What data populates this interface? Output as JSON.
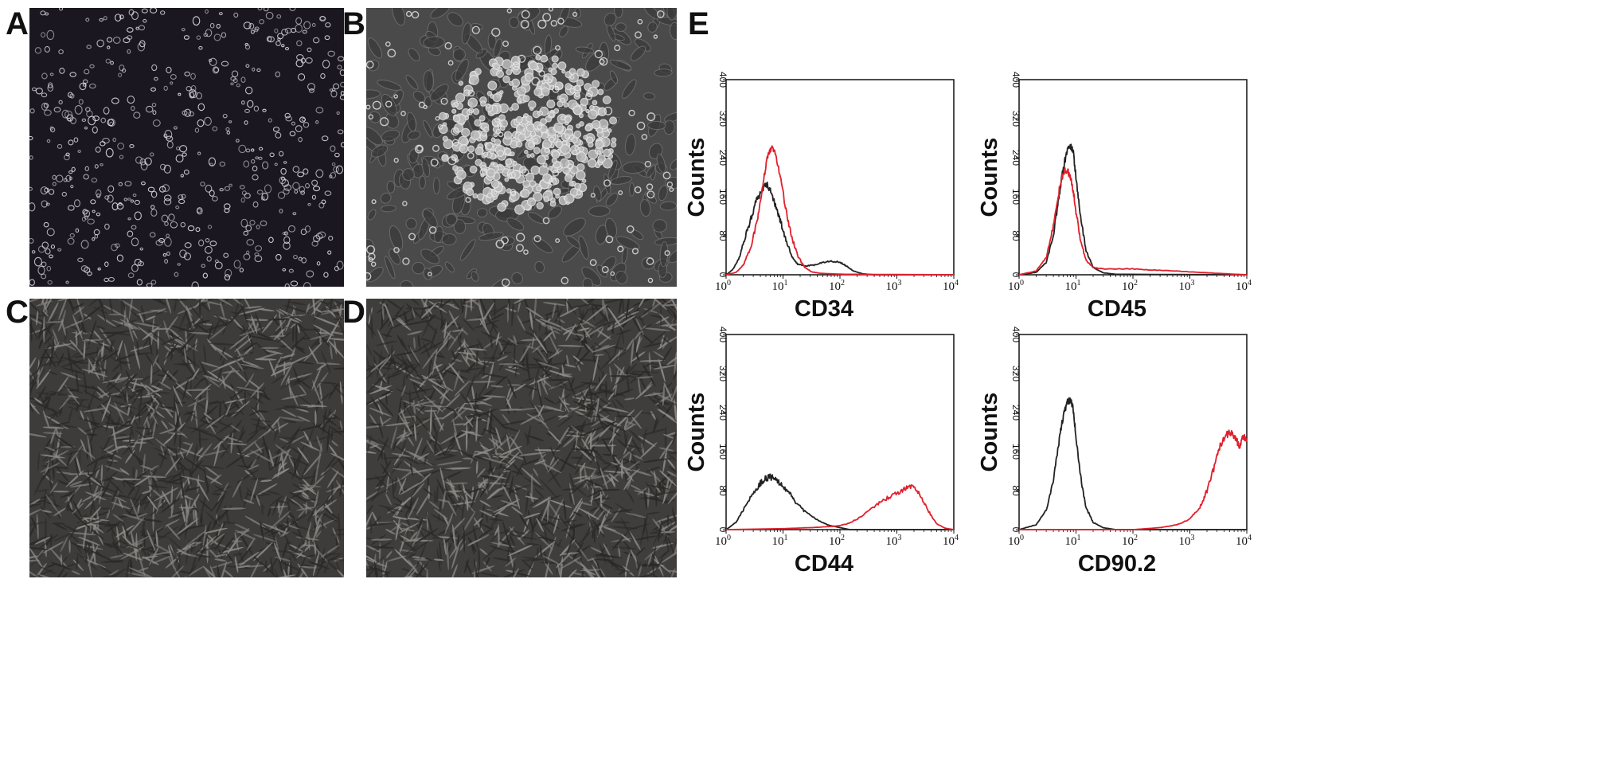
{
  "figure": {
    "panel_labels": {
      "a": "A",
      "b": "B",
      "c": "C",
      "d": "D",
      "e": "E"
    },
    "micrographs": [
      {
        "panel": "A",
        "description_style": "sparse-round-cells",
        "background": "#1a1720",
        "cell_color": "#d8d8dc"
      },
      {
        "panel": "B",
        "description_style": "colony",
        "background": "#4a4a4a",
        "cell_color": "#e6e6e6"
      },
      {
        "panel": "C",
        "description_style": "confluent-spindle",
        "background": "#3e3c3a",
        "cell_color": "#8c8a86"
      },
      {
        "panel": "D",
        "description_style": "confluent-spindle",
        "background": "#403e3c",
        "cell_color": "#8e8c88"
      }
    ]
  },
  "colors": {
    "control": "#222222",
    "marker": "#e0202c"
  },
  "chart_data": [
    {
      "type": "line",
      "marker": "CD34",
      "xlabel": "CD34",
      "ylabel": "Counts",
      "xscale": "log",
      "xlim": [
        1,
        10000
      ],
      "ylim": [
        0,
        400
      ],
      "yticks": [
        "0",
        "80",
        "160",
        "240",
        "320",
        "400"
      ],
      "xticks": [
        {
          "base": "10",
          "exp": "0"
        },
        {
          "base": "10",
          "exp": "1"
        },
        {
          "base": "10",
          "exp": "2"
        },
        {
          "base": "10",
          "exp": "3"
        },
        {
          "base": "10",
          "exp": "4"
        }
      ],
      "series": [
        {
          "color": "#222222",
          "x": [
            1,
            1.3,
            1.7,
            2.2,
            2.8,
            3.5,
            4.3,
            5.2,
            6.2,
            7.5,
            9,
            11,
            14,
            18,
            24,
            35,
            50,
            70,
            100,
            130,
            170,
            250,
            400,
            10000
          ],
          "y": [
            0,
            10,
            35,
            80,
            120,
            155,
            175,
            185,
            170,
            140,
            110,
            75,
            40,
            22,
            18,
            20,
            25,
            28,
            26,
            18,
            8,
            2,
            0,
            0
          ]
        },
        {
          "color": "#e0202c",
          "x": [
            1,
            1.5,
            2,
            2.8,
            3.6,
            4.5,
            5.5,
            6.5,
            7.5,
            9,
            11,
            14,
            18,
            24,
            32,
            45,
            70,
            120,
            10000
          ],
          "y": [
            0,
            5,
            20,
            60,
            120,
            190,
            250,
            265,
            245,
            200,
            140,
            80,
            40,
            15,
            6,
            3,
            2,
            1,
            0
          ]
        }
      ]
    },
    {
      "type": "line",
      "marker": "CD45",
      "xlabel": "CD45",
      "ylabel": "Counts",
      "xscale": "log",
      "xlim": [
        1,
        10000
      ],
      "ylim": [
        0,
        400
      ],
      "yticks": [
        "0",
        "80",
        "160",
        "240",
        "320",
        "400"
      ],
      "xticks": [
        {
          "base": "10",
          "exp": "0"
        },
        {
          "base": "10",
          "exp": "1"
        },
        {
          "base": "10",
          "exp": "2"
        },
        {
          "base": "10",
          "exp": "3"
        },
        {
          "base": "10",
          "exp": "4"
        }
      ],
      "series": [
        {
          "color": "#222222",
          "x": [
            1,
            2,
            3,
            4,
            5,
            6,
            7,
            8,
            9,
            10,
            12,
            15,
            20,
            30,
            50,
            10000
          ],
          "y": [
            0,
            5,
            25,
            80,
            160,
            220,
            255,
            265,
            250,
            200,
            120,
            50,
            15,
            4,
            1,
            0
          ]
        },
        {
          "color": "#e0202c",
          "x": [
            1,
            2,
            3,
            4,
            5,
            6,
            7,
            8,
            9,
            10,
            12,
            15,
            20,
            30,
            50,
            100,
            200,
            500,
            1000,
            3000,
            10000
          ],
          "y": [
            0,
            8,
            35,
            100,
            170,
            210,
            215,
            200,
            170,
            130,
            70,
            30,
            15,
            12,
            12,
            12,
            10,
            8,
            6,
            3,
            0
          ]
        }
      ]
    },
    {
      "type": "line",
      "marker": "CD44",
      "xlabel": "CD44",
      "ylabel": "Counts",
      "xscale": "log",
      "xlim": [
        1,
        10000
      ],
      "ylim": [
        0,
        400
      ],
      "yticks": [
        "0",
        "80",
        "160",
        "240",
        "320",
        "400"
      ],
      "xticks": [
        {
          "base": "10",
          "exp": "0"
        },
        {
          "base": "10",
          "exp": "1"
        },
        {
          "base": "10",
          "exp": "2"
        },
        {
          "base": "10",
          "exp": "3"
        },
        {
          "base": "10",
          "exp": "4"
        }
      ],
      "series": [
        {
          "color": "#222222",
          "x": [
            1,
            1.5,
            2,
            3,
            4,
            5,
            6,
            7,
            8,
            10,
            13,
            17,
            25,
            40,
            60,
            100,
            150,
            10000
          ],
          "y": [
            0,
            15,
            40,
            75,
            95,
            105,
            108,
            105,
            100,
            90,
            75,
            55,
            35,
            20,
            10,
            4,
            0,
            0
          ]
        },
        {
          "color": "#e0202c",
          "x": [
            1,
            10,
            30,
            60,
            100,
            150,
            250,
            400,
            600,
            900,
            1300,
            1800,
            2500,
            3500,
            5000,
            7000,
            10000
          ],
          "y": [
            0,
            2,
            4,
            6,
            8,
            14,
            28,
            48,
            62,
            72,
            82,
            88,
            75,
            40,
            12,
            3,
            0
          ]
        }
      ]
    },
    {
      "type": "line",
      "marker": "CD90.2",
      "xlabel": "CD90.2",
      "ylabel": "Counts",
      "xscale": "log",
      "xlim": [
        1,
        10000
      ],
      "ylim": [
        0,
        400
      ],
      "yticks": [
        "0",
        "80",
        "160",
        "240",
        "320",
        "400"
      ],
      "xticks": [
        {
          "base": "10",
          "exp": "0"
        },
        {
          "base": "10",
          "exp": "1"
        },
        {
          "base": "10",
          "exp": "2"
        },
        {
          "base": "10",
          "exp": "3"
        },
        {
          "base": "10",
          "exp": "4"
        }
      ],
      "series": [
        {
          "color": "#222222",
          "x": [
            1,
            2,
            3,
            4,
            5,
            6,
            7,
            8,
            9,
            10,
            12,
            15,
            20,
            30,
            50,
            10000
          ],
          "y": [
            0,
            10,
            40,
            100,
            180,
            235,
            262,
            265,
            245,
            190,
            110,
            45,
            15,
            4,
            0,
            0
          ]
        },
        {
          "color": "#e0202c",
          "x": [
            1,
            100,
            300,
            600,
            1000,
            1500,
            2000,
            2700,
            3500,
            4500,
            5500,
            6500,
            7500,
            8500,
            10000
          ],
          "y": [
            0,
            0,
            4,
            10,
            22,
            45,
            80,
            130,
            175,
            195,
            200,
            185,
            170,
            190,
            185
          ]
        }
      ]
    }
  ]
}
